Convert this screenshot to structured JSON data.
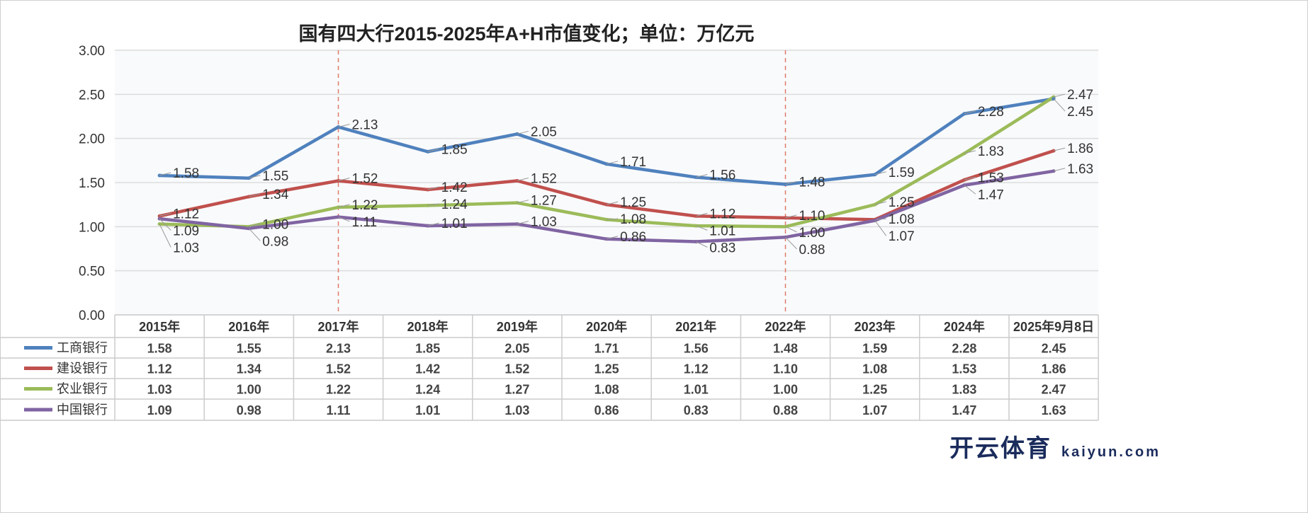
{
  "chart_data": {
    "type": "line",
    "title": "国有四大行2015-2025年A+H市值变化；单位：万亿元",
    "categories": [
      "2015年",
      "2016年",
      "2017年",
      "2018年",
      "2019年",
      "2020年",
      "2021年",
      "2022年",
      "2023年",
      "2024年",
      "2025年9月8日"
    ],
    "ylim": [
      0,
      3
    ],
    "yticks": [
      "0.00",
      "0.50",
      "1.00",
      "1.50",
      "2.00",
      "2.50",
      "3.00"
    ],
    "grid": true,
    "legend": "bottom-table",
    "markers": [
      "2017年",
      "2022年"
    ],
    "series": [
      {
        "name": "工商银行",
        "color": "#4f81bd",
        "values": [
          1.58,
          1.55,
          2.13,
          1.85,
          2.05,
          1.71,
          1.56,
          1.48,
          1.59,
          2.28,
          2.45
        ]
      },
      {
        "name": "建设银行",
        "color": "#c0504d",
        "values": [
          1.12,
          1.34,
          1.52,
          1.42,
          1.52,
          1.25,
          1.12,
          1.1,
          1.08,
          1.53,
          1.86
        ]
      },
      {
        "name": "农业银行",
        "color": "#9bbb59",
        "values": [
          1.03,
          1.0,
          1.22,
          1.24,
          1.27,
          1.08,
          1.01,
          1.0,
          1.25,
          1.83,
          2.47
        ]
      },
      {
        "name": "中国银行",
        "color": "#8064a2",
        "values": [
          1.09,
          0.98,
          1.11,
          1.01,
          1.03,
          0.86,
          0.83,
          0.88,
          1.07,
          1.47,
          1.63
        ]
      }
    ]
  },
  "watermark": {
    "text": "开云体育",
    "sub": "kaiyun.com"
  }
}
